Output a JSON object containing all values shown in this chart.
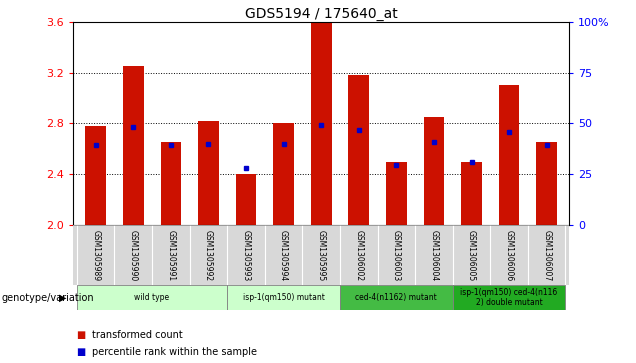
{
  "title": "GDS5194 / 175640_at",
  "samples": [
    "GSM1305989",
    "GSM1305990",
    "GSM1305991",
    "GSM1305992",
    "GSM1305993",
    "GSM1305994",
    "GSM1305995",
    "GSM1306002",
    "GSM1306003",
    "GSM1306004",
    "GSM1306005",
    "GSM1306006",
    "GSM1306007"
  ],
  "red_values": [
    2.78,
    3.25,
    2.65,
    2.82,
    2.4,
    2.8,
    3.59,
    3.18,
    2.5,
    2.85,
    2.5,
    3.1,
    2.65
  ],
  "blue_values": [
    2.63,
    2.77,
    2.63,
    2.64,
    2.45,
    2.64,
    2.79,
    2.75,
    2.47,
    2.65,
    2.5,
    2.73,
    2.63
  ],
  "ymin": 2.0,
  "ymax": 3.6,
  "yticks_left": [
    2.0,
    2.4,
    2.8,
    3.2,
    3.6
  ],
  "yticks_right": [
    0,
    25,
    50,
    75,
    100
  ],
  "bar_color": "#cc1100",
  "dot_color": "#0000cc",
  "group_defs": [
    {
      "start": 0,
      "end": 3,
      "color": "#ccffcc",
      "label": "wild type"
    },
    {
      "start": 4,
      "end": 6,
      "color": "#ccffcc",
      "label": "isp-1(qm150) mutant"
    },
    {
      "start": 7,
      "end": 9,
      "color": "#44bb44",
      "label": "ced-4(n1162) mutant"
    },
    {
      "start": 10,
      "end": 12,
      "color": "#22aa22",
      "label": "isp-1(qm150) ced-4(n116\n2) double mutant"
    }
  ],
  "genotype_label": "genotype/variation",
  "legend_items": [
    {
      "color": "#cc1100",
      "label": "transformed count"
    },
    {
      "color": "#0000cc",
      "label": "percentile rank within the sample"
    }
  ],
  "bar_width": 0.55
}
